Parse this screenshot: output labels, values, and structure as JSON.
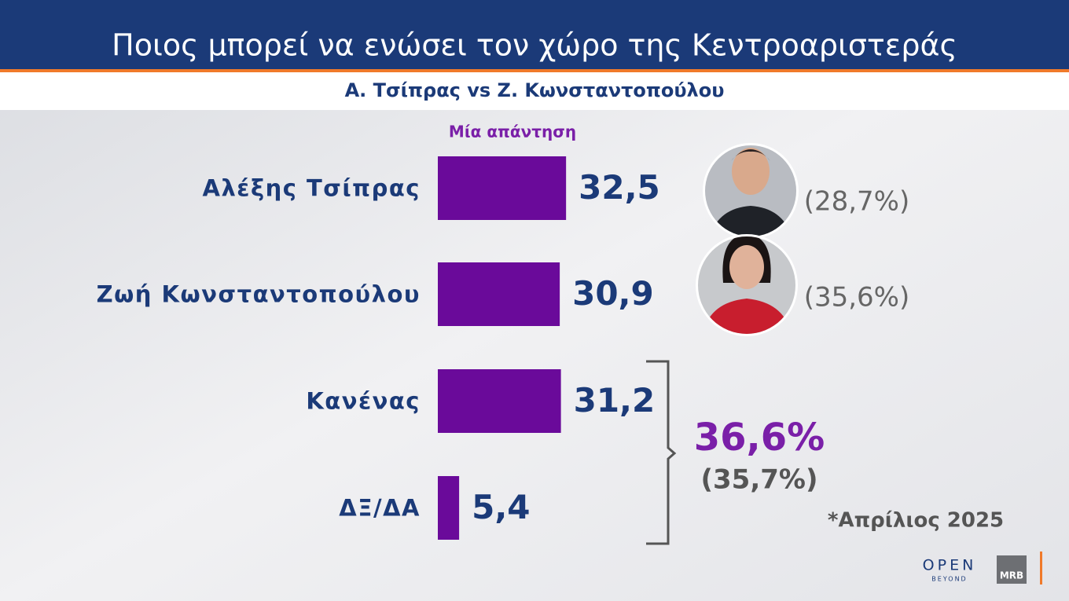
{
  "chart_data": {
    "type": "bar",
    "orientation": "horizontal",
    "title": "Ποιος  μπορεί να ενώσει τον χώρο της Κεντροαριστεράς",
    "subtitle": "Α. Τσίπρας vs Ζ. Κωνσταντοπούλου",
    "series_label": "Μία απάντηση",
    "categories": [
      "Αλέξης Τσίπρας",
      "Ζωή Κωνσταντοπούλου",
      "Κανένας",
      "ΔΞ/ΔΑ"
    ],
    "values": [
      32.5,
      30.9,
      31.2,
      5.4
    ],
    "value_labels": [
      "32,5",
      "30,9",
      "31,2",
      "5,4"
    ],
    "color": "#6a0a9a",
    "previous_labels": [
      "(28,7%)",
      "(35,6%)"
    ],
    "bracket_label": "36,6%",
    "bracket_sublabel": "(35,7%)",
    "note": "*Απρίλιος 2025"
  },
  "logos": {
    "open": "OPEN",
    "beyond": "BEYOND",
    "mrb": "MRB"
  }
}
